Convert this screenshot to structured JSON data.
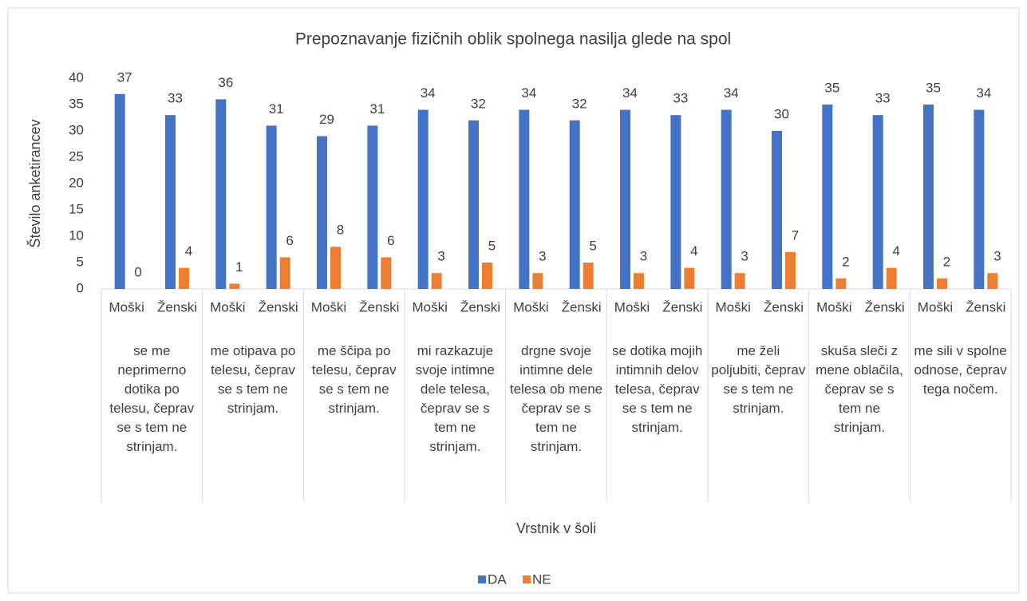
{
  "chart_data": {
    "type": "bar",
    "title": "Prepoznavanje fizičnih oblik spolnega nasilja glede na spol",
    "y_label": "Število anketirancev",
    "x_label": "Vrstnik v šoli",
    "categories": [
      "Moški",
      "Ženski",
      "Moški",
      "Ženski",
      "Moški",
      "Ženski",
      "Moški",
      "Ženski",
      "Moški",
      "Ženski",
      "Moški",
      "Ženski",
      "Moški",
      "Ženski",
      "Moški",
      "Ženski",
      "Moški",
      "Ženski"
    ],
    "groups": [
      "se me neprimerno dotika po telesu, čeprav se s tem ne strinjam.",
      "me otipava po telesu, čeprav se s tem ne strinjam.",
      "me ščipa po telesu, čeprav se s tem ne strinjam.",
      "mi razkazuje svoje intimne dele telesa, čeprav se s tem ne strinjam.",
      "drgne svoje intimne dele telesa ob mene čeprav se s tem ne strinjam.",
      "se dotika mojih intimnih delov telesa, čeprav se s tem ne strinjam.",
      "me želi poljubiti, čeprav se s tem ne strinjam.",
      "skuša sleči z mene oblačila, čeprav se s tem ne strinjam.",
      "me sili v spolne odnose, čeprav tega nočem."
    ],
    "series": [
      {
        "name": "DA",
        "color": "#4472c4",
        "values": [
          37,
          33,
          36,
          31,
          29,
          31,
          34,
          32,
          34,
          32,
          34,
          33,
          34,
          30,
          35,
          33,
          35,
          34
        ]
      },
      {
        "name": "NE",
        "color": "#ed7d31",
        "values": [
          0,
          4,
          1,
          6,
          8,
          6,
          3,
          5,
          3,
          5,
          3,
          4,
          3,
          7,
          2,
          4,
          2,
          3
        ]
      }
    ],
    "ylim": [
      0,
      40
    ],
    "yticks": [
      0,
      5,
      10,
      15,
      20,
      25,
      30,
      35,
      40
    ],
    "grid": false,
    "legend": "bottom"
  }
}
